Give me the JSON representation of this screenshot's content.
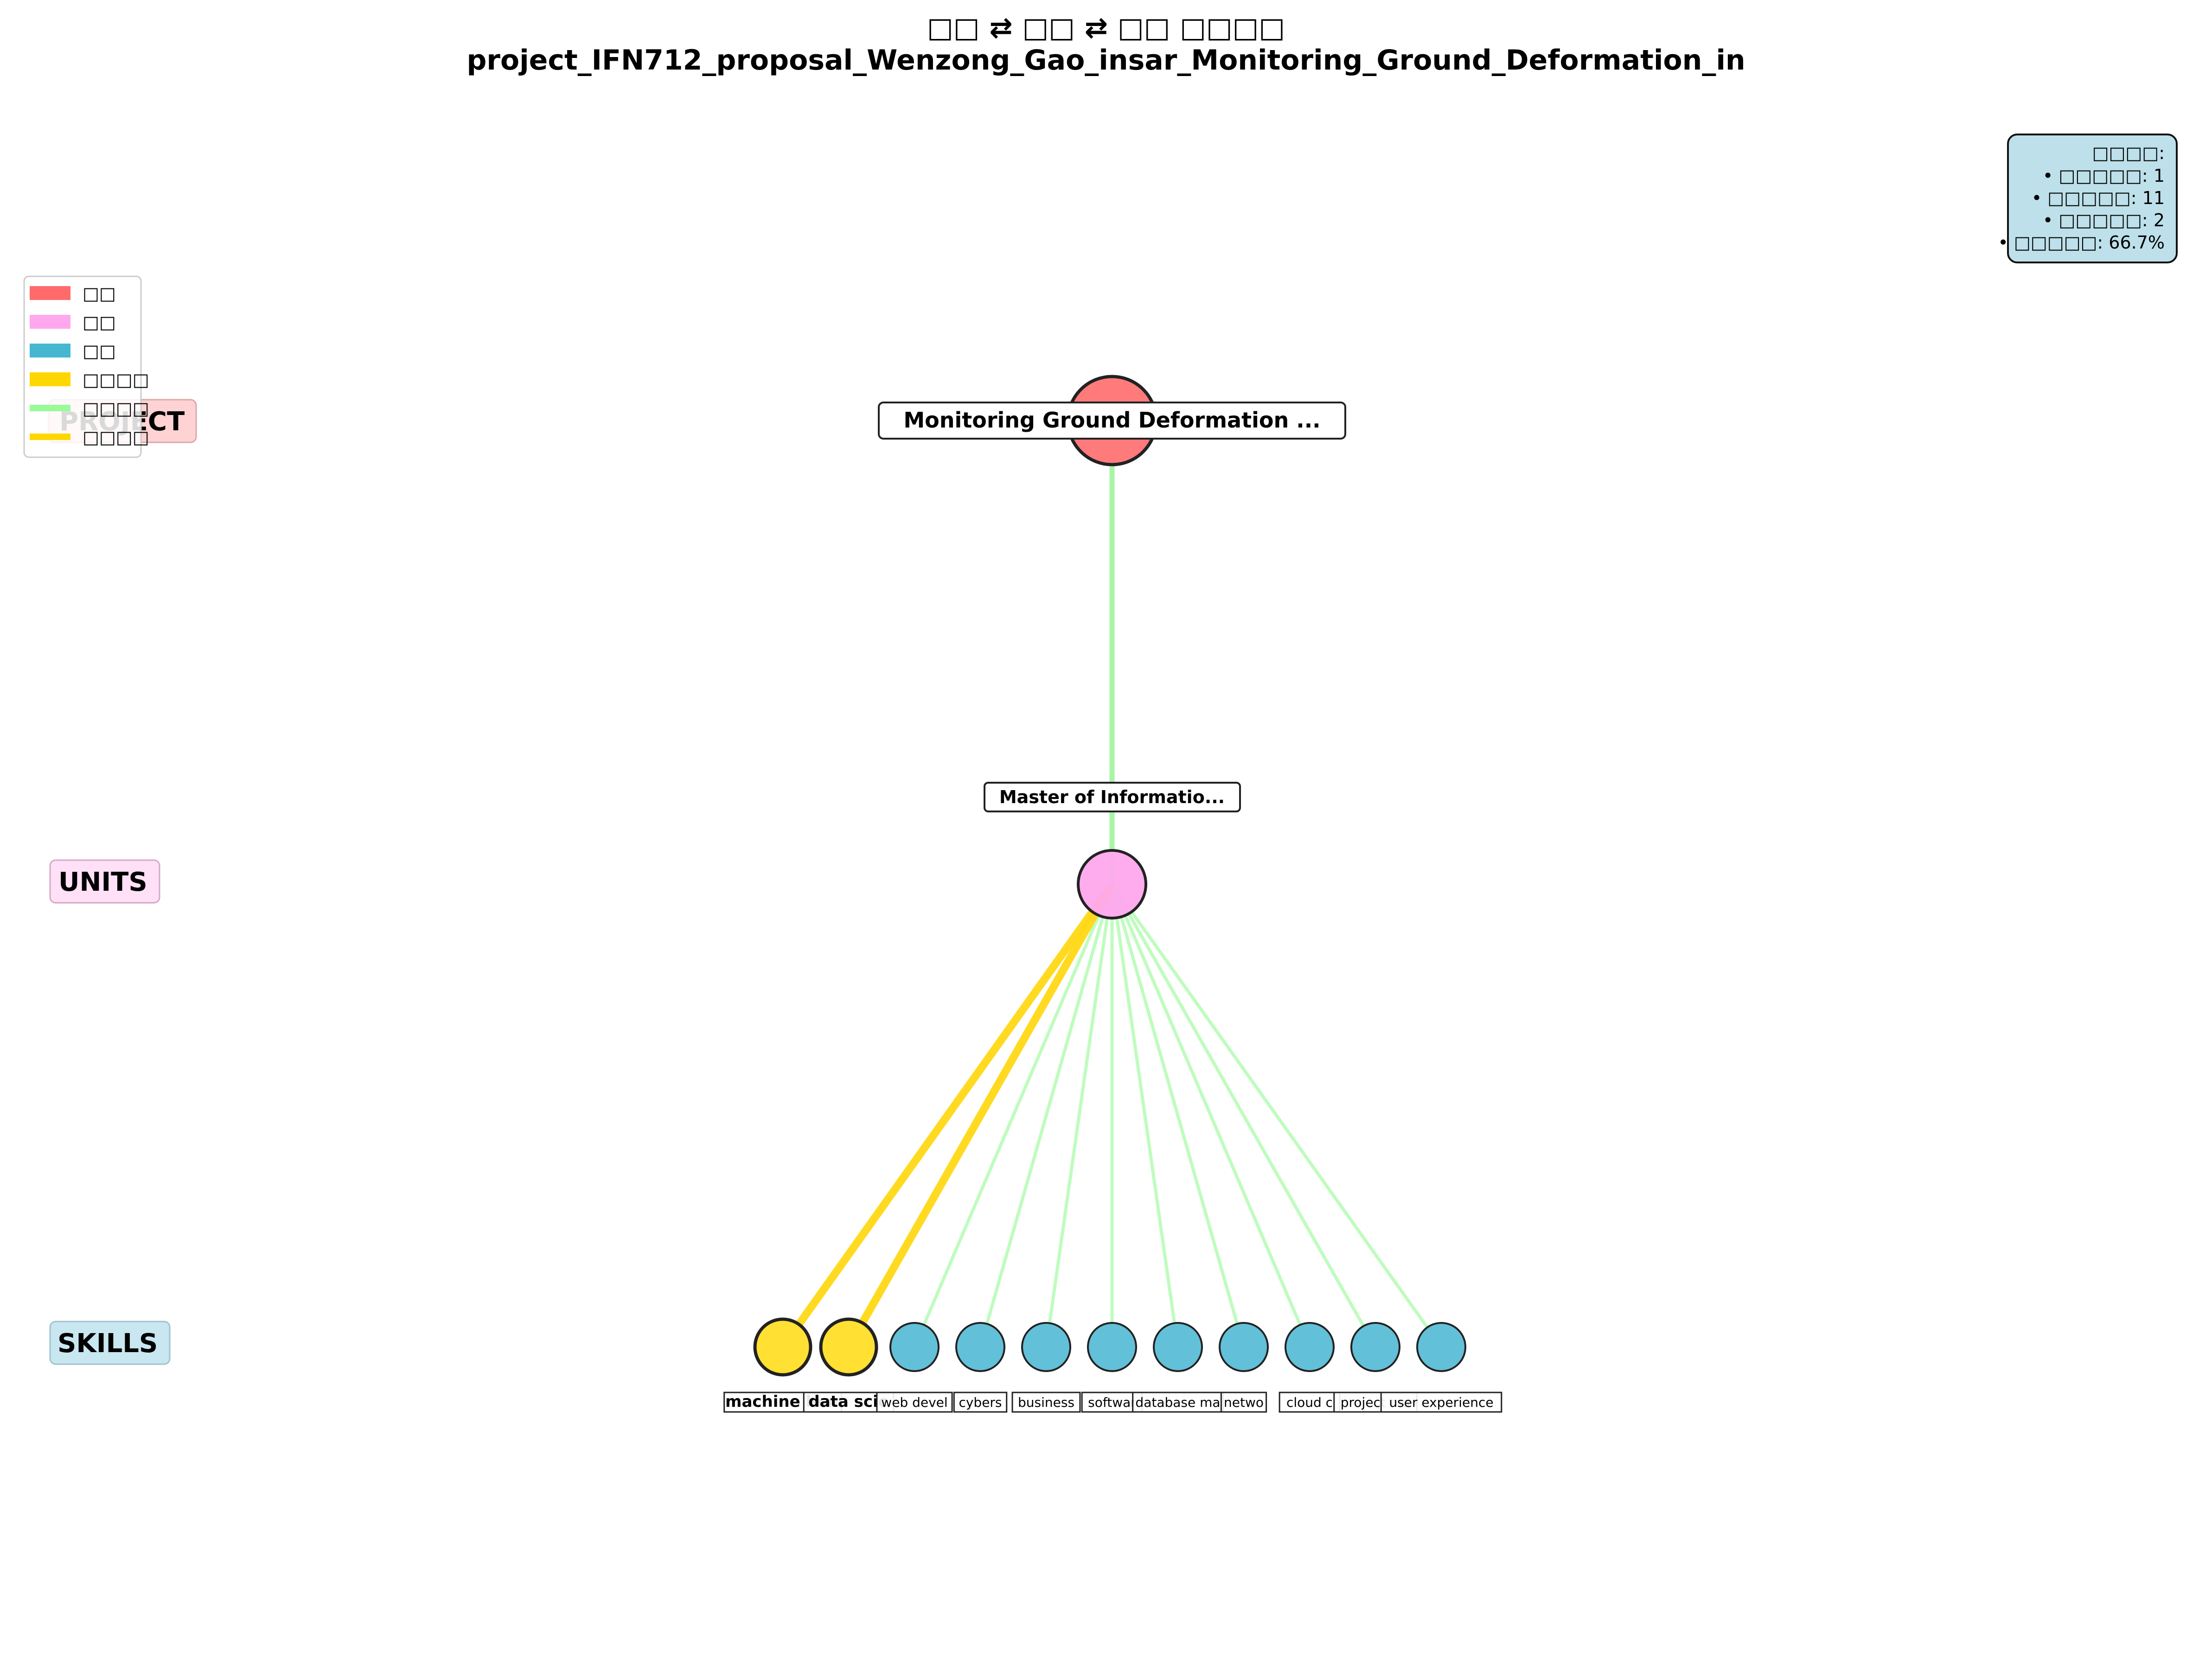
{
  "title": {
    "line1": "□□ ⇄ □□ ⇄ □□ □□□□",
    "line2": "project_IFN712_proposal_Wenzong_Gao_insar_Monitoring_Ground_Deformation_in"
  },
  "layers": {
    "project": "PROJECT",
    "units": "UNITS",
    "skills": "SKILLS"
  },
  "project_node": {
    "label": "Monitoring Ground Deformation ...",
    "color": "#ff7b7b"
  },
  "unit_node": {
    "label": "Master of Informatio...",
    "color": "#ffa8ee"
  },
  "skills": [
    {
      "label": "machine lear",
      "matched": true
    },
    {
      "label": "data scie",
      "matched": true
    },
    {
      "label": "web devel",
      "matched": false
    },
    {
      "label": "cybers",
      "matched": false
    },
    {
      "label": "business",
      "matched": false
    },
    {
      "label": "softwar",
      "matched": false
    },
    {
      "label": "database ma",
      "matched": false
    },
    {
      "label": "netwo",
      "matched": false
    },
    {
      "label": "cloud c",
      "matched": false
    },
    {
      "label": "project ma",
      "matched": false
    },
    {
      "label": "user experience",
      "matched": false
    }
  ],
  "legend": [
    {
      "label": "□□",
      "color": "#ff6b6b",
      "kind": "patch"
    },
    {
      "label": "□□",
      "color": "#ffa8ee",
      "kind": "patch"
    },
    {
      "label": "□□",
      "color": "#45b7d1",
      "kind": "patch"
    },
    {
      "label": "□□□□",
      "color": "#ffd700",
      "kind": "patch"
    },
    {
      "label": "□□□□",
      "color": "#98fb98",
      "kind": "line"
    },
    {
      "label": "□□□□",
      "color": "#ffd700",
      "kind": "line"
    }
  ],
  "stats": {
    "title": "□□□□:",
    "lines": [
      "• □□□□□: 1",
      "• □□□□□: 11",
      "• □□□□□: 2",
      "• □□□□□: 66.7%"
    ]
  },
  "colors": {
    "skill_matched": "#ffe033",
    "skill_unmatched": "#62c0d8",
    "edge_normal": "#b4fbb4",
    "edge_main": "#a8f5a8",
    "edge_matched": "#ffd814",
    "stats_bg": "#bde0ea",
    "project_label_bg": "#ffd3d3",
    "units_label_bg": "#ffe0f7",
    "skills_label_bg": "#c8e7f0"
  }
}
